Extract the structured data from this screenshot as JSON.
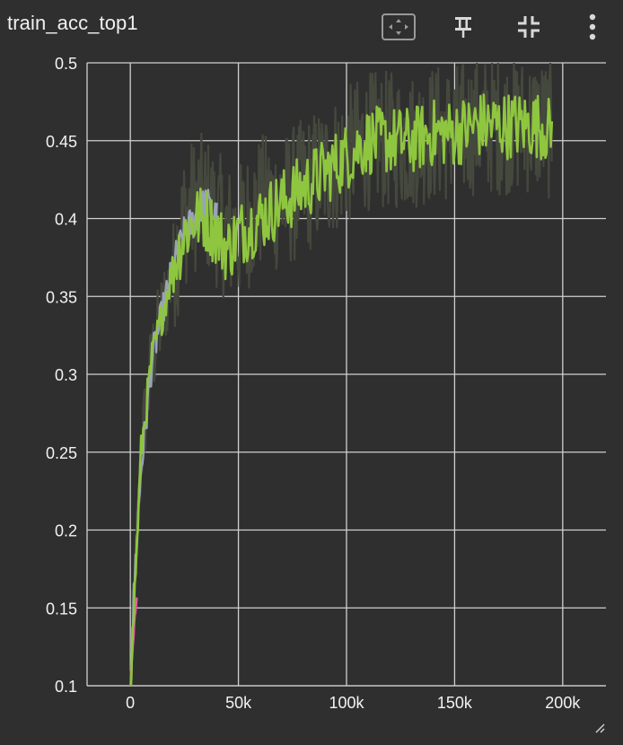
{
  "card": {
    "title": "train_acc_top1"
  },
  "toolbar": {
    "fit_domain_icon": "fit-to-data-icon",
    "pin_icon": "pin-icon",
    "collapse_icon": "collapse-icon",
    "menu_icon": "more-vert-icon"
  },
  "colors": {
    "background": "#2f2f2f",
    "grid": "#d0d0d0",
    "main_series": "#8ec63f",
    "raw_series": "#45483d",
    "secondary_series": "#9aa3b8",
    "accent_series": "#e05fa0"
  },
  "chart_data": {
    "type": "line",
    "title": "",
    "xlabel": "",
    "ylabel": "",
    "grid": true,
    "xlim": [
      -20000,
      220000
    ],
    "ylim": [
      0.1,
      0.5
    ],
    "x_ticks": [
      0,
      50000,
      100000,
      150000,
      200000
    ],
    "x_tick_labels": [
      "0",
      "50k",
      "100k",
      "150k",
      "200k"
    ],
    "y_ticks": [
      0.1,
      0.15,
      0.2,
      0.25,
      0.3,
      0.35,
      0.4,
      0.45,
      0.5
    ],
    "y_tick_labels": [
      "0.1",
      "0.15",
      "0.2",
      "0.25",
      "0.3",
      "0.35",
      "0.4",
      "0.45",
      "0.5"
    ],
    "series": [
      {
        "role": "raw",
        "x": [
          0,
          5000,
          10000,
          15000,
          20000,
          25000,
          30000,
          35000,
          40000,
          45000,
          50000,
          60000,
          70000,
          80000,
          90000,
          100000,
          110000,
          120000,
          130000,
          140000,
          150000,
          160000,
          170000,
          180000,
          190000,
          195000
        ],
        "y": [
          0.1,
          0.25,
          0.31,
          0.34,
          0.37,
          0.4,
          0.41,
          0.41,
          0.4,
          0.39,
          0.39,
          0.41,
          0.41,
          0.42,
          0.43,
          0.44,
          0.45,
          0.45,
          0.45,
          0.455,
          0.455,
          0.46,
          0.46,
          0.46,
          0.46,
          0.455
        ]
      },
      {
        "role": "secondary",
        "x": [
          0,
          2000,
          5000,
          8000,
          10000,
          15000,
          20000,
          25000,
          30000,
          35000,
          40000
        ],
        "y": [
          0.1,
          0.17,
          0.24,
          0.28,
          0.31,
          0.34,
          0.37,
          0.39,
          0.4,
          0.41,
          0.4
        ]
      },
      {
        "role": "accent",
        "x": [
          0,
          1500,
          3000
        ],
        "y": [
          0.1,
          0.13,
          0.16
        ]
      },
      {
        "role": "main",
        "x": [
          0,
          5000,
          10000,
          15000,
          20000,
          25000,
          30000,
          35000,
          40000,
          45000,
          50000,
          60000,
          70000,
          80000,
          90000,
          100000,
          110000,
          120000,
          130000,
          140000,
          150000,
          160000,
          170000,
          180000,
          190000,
          195000
        ],
        "y": [
          0.1,
          0.25,
          0.31,
          0.34,
          0.37,
          0.39,
          0.4,
          0.4,
          0.39,
          0.38,
          0.39,
          0.4,
          0.41,
          0.42,
          0.43,
          0.44,
          0.45,
          0.45,
          0.45,
          0.455,
          0.455,
          0.46,
          0.46,
          0.46,
          0.46,
          0.455
        ]
      }
    ]
  }
}
